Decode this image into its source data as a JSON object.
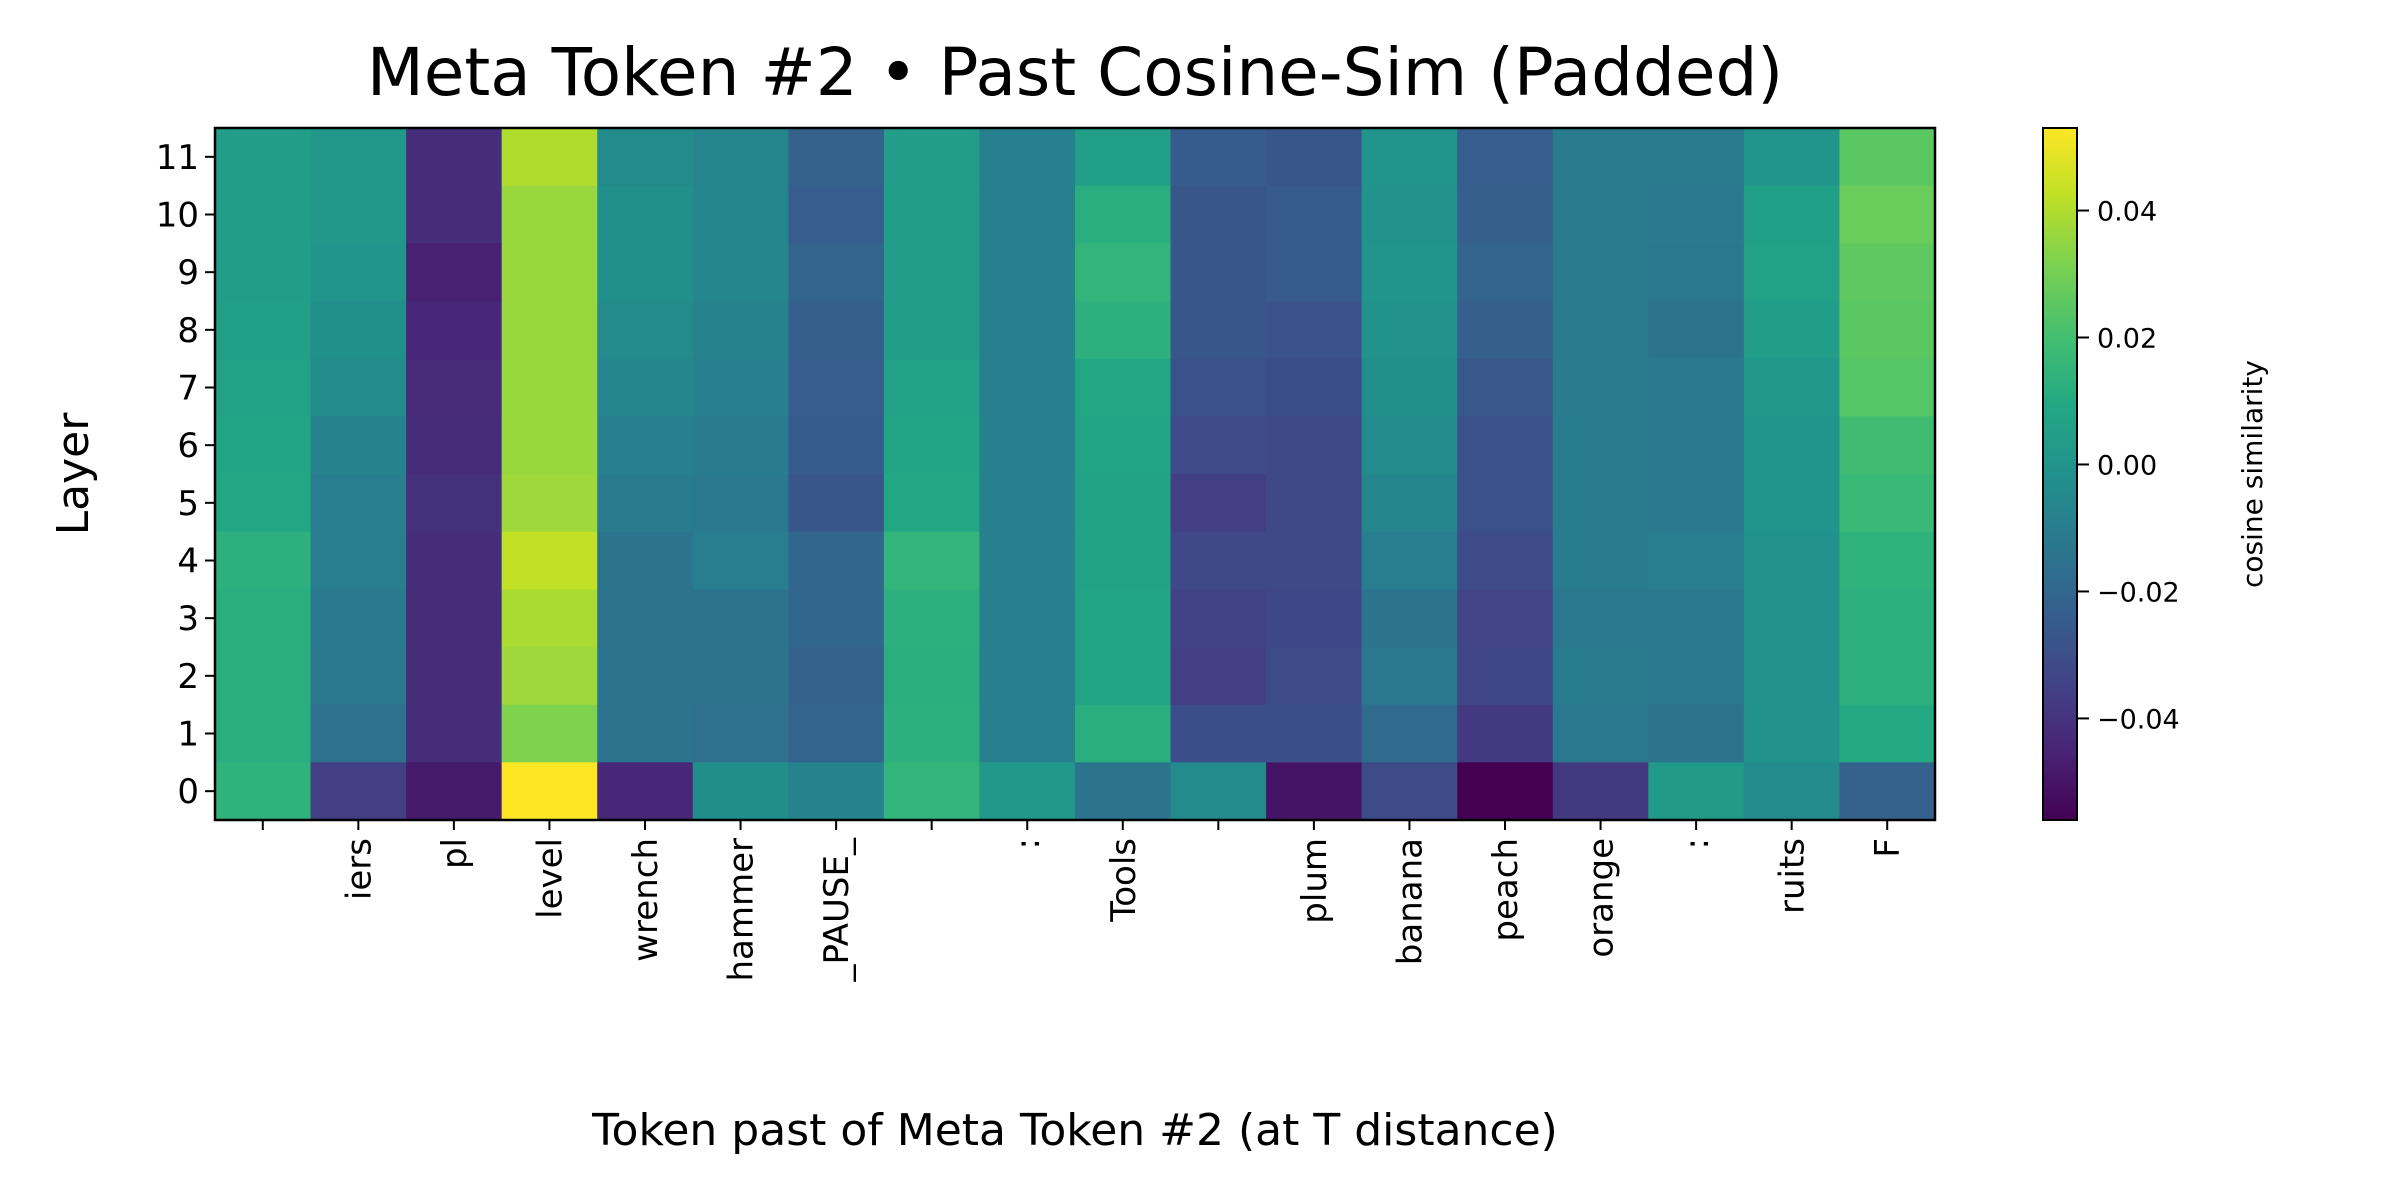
{
  "chart_data": {
    "type": "heatmap",
    "title": "Meta Token #2 • Past Cosine-Sim (Padded)",
    "xlabel": "Token past of Meta Token #2 (at T distance)",
    "ylabel": "Layer",
    "colorbar_label": "cosine similarity",
    "colormap": "viridis",
    "vmin": -0.056,
    "vmax": 0.053,
    "colorbar_ticks": [
      0.04,
      0.02,
      0.0,
      -0.02,
      -0.04
    ],
    "colorbar_tick_labels": [
      "0.04",
      "0.02",
      "0.00",
      "−0.02",
      "−0.04"
    ],
    "x_categories": [
      " ",
      "iers",
      "pl",
      "level",
      "wrench",
      "hammer",
      "_PAUSE_",
      " ",
      ":",
      "Tools",
      " ",
      "plum",
      "banana",
      "peach",
      "orange",
      ":",
      "ruits",
      "F"
    ],
    "y_categories": [
      "11",
      "10",
      "9",
      "8",
      "7",
      "6",
      "5",
      "4",
      "3",
      "2",
      "1",
      "0"
    ],
    "values": [
      [
        0.004,
        0.002,
        -0.042,
        0.04,
        -0.004,
        -0.007,
        -0.022,
        0.004,
        -0.009,
        0.005,
        -0.025,
        -0.027,
        0.0,
        -0.024,
        -0.011,
        -0.011,
        0.0,
        0.025
      ],
      [
        0.004,
        0.002,
        -0.042,
        0.036,
        -0.002,
        -0.006,
        -0.024,
        0.004,
        -0.009,
        0.012,
        -0.027,
        -0.025,
        -0.001,
        -0.023,
        -0.011,
        -0.012,
        0.005,
        0.028
      ],
      [
        0.004,
        0.0,
        -0.046,
        0.036,
        -0.002,
        -0.006,
        -0.021,
        0.004,
        -0.009,
        0.015,
        -0.027,
        -0.025,
        0.0,
        -0.021,
        -0.011,
        -0.013,
        0.006,
        0.026
      ],
      [
        0.005,
        -0.002,
        -0.044,
        0.036,
        -0.004,
        -0.008,
        -0.023,
        0.004,
        -0.009,
        0.013,
        -0.027,
        -0.028,
        -0.001,
        -0.023,
        -0.011,
        -0.014,
        0.004,
        0.025
      ],
      [
        0.006,
        -0.004,
        -0.043,
        0.036,
        -0.006,
        -0.009,
        -0.024,
        0.006,
        -0.009,
        0.009,
        -0.029,
        -0.03,
        -0.002,
        -0.026,
        -0.011,
        -0.012,
        0.002,
        0.024
      ],
      [
        0.008,
        -0.008,
        -0.042,
        0.036,
        -0.009,
        -0.011,
        -0.025,
        0.008,
        -0.009,
        0.008,
        -0.031,
        -0.032,
        -0.004,
        -0.029,
        -0.011,
        -0.012,
        0.0,
        0.019
      ],
      [
        0.009,
        -0.01,
        -0.041,
        0.037,
        -0.011,
        -0.012,
        -0.027,
        0.009,
        -0.009,
        0.007,
        -0.036,
        -0.032,
        -0.006,
        -0.029,
        -0.011,
        -0.012,
        0.0,
        0.017
      ],
      [
        0.013,
        -0.01,
        -0.042,
        0.043,
        -0.014,
        -0.01,
        -0.02,
        0.015,
        -0.009,
        0.007,
        -0.032,
        -0.032,
        -0.01,
        -0.031,
        -0.011,
        -0.01,
        -0.001,
        0.014
      ],
      [
        0.012,
        -0.012,
        -0.042,
        0.039,
        -0.014,
        -0.014,
        -0.02,
        0.013,
        -0.009,
        0.008,
        -0.035,
        -0.033,
        -0.014,
        -0.034,
        -0.013,
        -0.013,
        -0.001,
        0.013
      ],
      [
        0.012,
        -0.013,
        -0.042,
        0.037,
        -0.014,
        -0.014,
        -0.022,
        0.012,
        -0.009,
        0.008,
        -0.036,
        -0.031,
        -0.013,
        -0.033,
        -0.011,
        -0.013,
        -0.001,
        0.013
      ],
      [
        0.012,
        -0.016,
        -0.042,
        0.032,
        -0.014,
        -0.016,
        -0.021,
        0.013,
        -0.009,
        0.012,
        -0.03,
        -0.03,
        -0.018,
        -0.038,
        -0.013,
        -0.014,
        -0.001,
        0.01
      ],
      [
        0.014,
        -0.036,
        -0.048,
        0.054,
        -0.044,
        -0.003,
        -0.008,
        0.015,
        0.002,
        -0.014,
        -0.004,
        -0.05,
        -0.031,
        -0.056,
        -0.038,
        0.003,
        -0.004,
        -0.022
      ]
    ]
  }
}
